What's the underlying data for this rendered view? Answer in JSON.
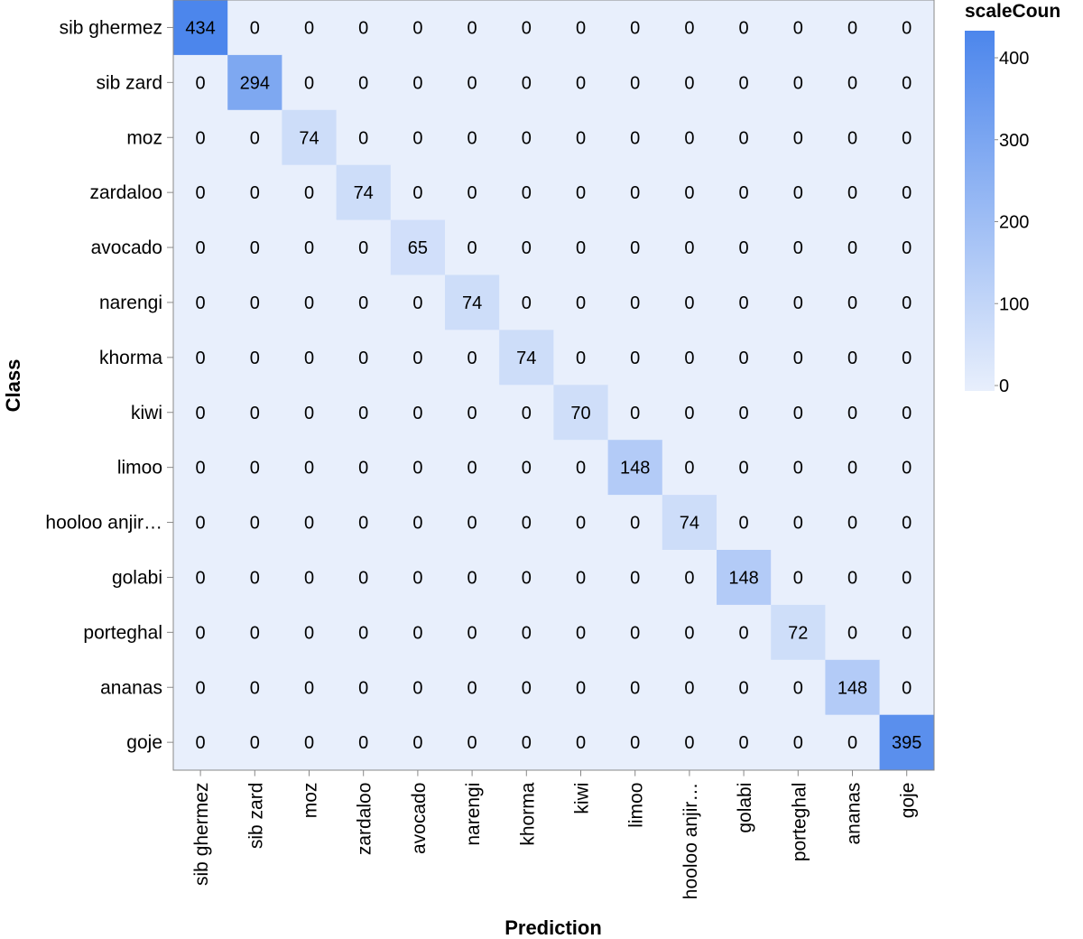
{
  "chart_data": {
    "type": "heatmap",
    "title": "",
    "xlabel": "Prediction",
    "ylabel": "Class",
    "rows": [
      "sib ghermez",
      "sib zard",
      "moz",
      "zardaloo",
      "avocado",
      "narengi",
      "khorma",
      "kiwi",
      "limoo",
      "hooloo anjir…",
      "golabi",
      "porteghal",
      "ananas",
      "goje"
    ],
    "columns": [
      "sib ghermez",
      "sib zard",
      "moz",
      "zardaloo",
      "avocado",
      "narengi",
      "khorma",
      "kiwi",
      "limoo",
      "hooloo anjir…",
      "golabi",
      "porteghal",
      "ananas",
      "goje"
    ],
    "values": [
      [
        434,
        0,
        0,
        0,
        0,
        0,
        0,
        0,
        0,
        0,
        0,
        0,
        0,
        0
      ],
      [
        0,
        294,
        0,
        0,
        0,
        0,
        0,
        0,
        0,
        0,
        0,
        0,
        0,
        0
      ],
      [
        0,
        0,
        74,
        0,
        0,
        0,
        0,
        0,
        0,
        0,
        0,
        0,
        0,
        0
      ],
      [
        0,
        0,
        0,
        74,
        0,
        0,
        0,
        0,
        0,
        0,
        0,
        0,
        0,
        0
      ],
      [
        0,
        0,
        0,
        0,
        65,
        0,
        0,
        0,
        0,
        0,
        0,
        0,
        0,
        0
      ],
      [
        0,
        0,
        0,
        0,
        0,
        74,
        0,
        0,
        0,
        0,
        0,
        0,
        0,
        0
      ],
      [
        0,
        0,
        0,
        0,
        0,
        0,
        74,
        0,
        0,
        0,
        0,
        0,
        0,
        0
      ],
      [
        0,
        0,
        0,
        0,
        0,
        0,
        0,
        70,
        0,
        0,
        0,
        0,
        0,
        0
      ],
      [
        0,
        0,
        0,
        0,
        0,
        0,
        0,
        0,
        148,
        0,
        0,
        0,
        0,
        0
      ],
      [
        0,
        0,
        0,
        0,
        0,
        0,
        0,
        0,
        0,
        74,
        0,
        0,
        0,
        0
      ],
      [
        0,
        0,
        0,
        0,
        0,
        0,
        0,
        0,
        0,
        0,
        148,
        0,
        0,
        0
      ],
      [
        0,
        0,
        0,
        0,
        0,
        0,
        0,
        0,
        0,
        0,
        0,
        72,
        0,
        0
      ],
      [
        0,
        0,
        0,
        0,
        0,
        0,
        0,
        0,
        0,
        0,
        0,
        0,
        148,
        0
      ],
      [
        0,
        0,
        0,
        0,
        0,
        0,
        0,
        0,
        0,
        0,
        0,
        0,
        0,
        395
      ]
    ],
    "legend": {
      "title": "scaleCoun",
      "ticks": [
        0,
        100,
        200,
        300,
        400
      ],
      "domain": [
        0,
        434
      ],
      "color_low": "#e8effc",
      "color_high": "#4c86ec"
    }
  }
}
